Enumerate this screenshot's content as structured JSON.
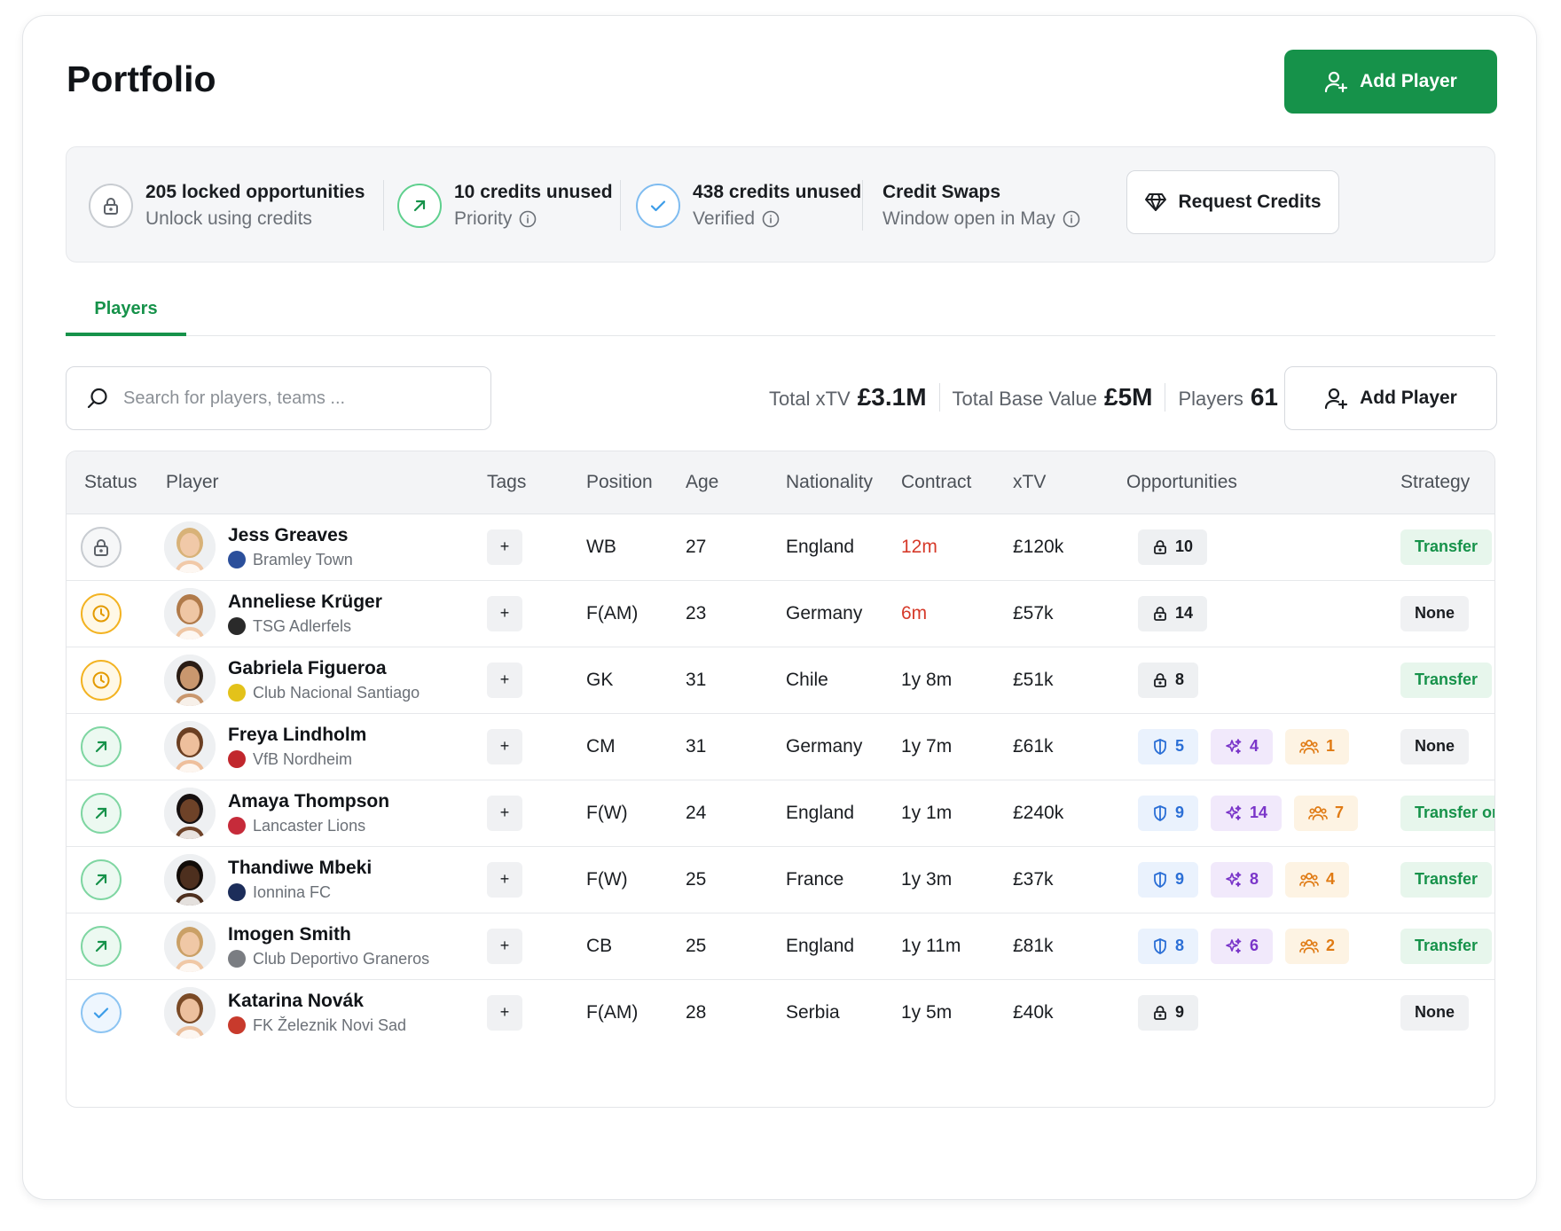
{
  "header": {
    "title": "Portfolio",
    "add_player_label": "Add Player"
  },
  "summary": {
    "locked": {
      "title": "205 locked opportunities",
      "sub": "Unlock using credits"
    },
    "priority": {
      "title": "10 credits unused",
      "sub": "Priority"
    },
    "verified": {
      "title": "438 credits unused",
      "sub": "Verified"
    },
    "swaps": {
      "title": "Credit Swaps",
      "sub": "Window open in May"
    },
    "request_label": "Request Credits"
  },
  "tabs": [
    {
      "label": "Players"
    }
  ],
  "search": {
    "placeholder": "Search for players, teams ...",
    "value": ""
  },
  "totals": {
    "xtv_label": "Total xTV",
    "xtv_value": "£3.1M",
    "base_label": "Total Base Value",
    "base_value": "£5M",
    "players_label": "Players",
    "players_value": "61"
  },
  "toolbar": {
    "add_player_label": "Add Player"
  },
  "table": {
    "columns": [
      "Status",
      "Player",
      "Tags",
      "Position",
      "Age",
      "Nationality",
      "Contract",
      "xTV",
      "Opportunities",
      "Strategy"
    ],
    "tag_label": "+",
    "rows": [
      {
        "status": "locked",
        "name": "Jess Greaves",
        "team": "Bramley Town",
        "position": "WB",
        "age": "27",
        "nationality": "England",
        "contract": "12m",
        "contract_warning": true,
        "xtv": "£120k",
        "lock": "10",
        "strategy": "Transfer",
        "strategy_type": "transfer",
        "crest_color": "#2b4f9b",
        "skin": "#f1c9a8",
        "hair": "#d8b278"
      },
      {
        "status": "pending",
        "name": "Anneliese Krüger",
        "team": "TSG Adlerfels",
        "position": "F(AM)",
        "age": "23",
        "nationality": "Germany",
        "contract": "6m",
        "contract_warning": true,
        "xtv": "£57k",
        "lock": "14",
        "strategy": "None",
        "strategy_type": "none",
        "crest_color": "#2a2a2a",
        "skin": "#efc6a4",
        "hair": "#b07a4a"
      },
      {
        "status": "pending",
        "name": "Gabriela Figueroa",
        "team": "Club Nacional Santiago",
        "position": "GK",
        "age": "31",
        "nationality": "Chile",
        "contract": "1y 8m",
        "contract_warning": false,
        "xtv": "£51k",
        "lock": "8",
        "strategy": "Transfer",
        "strategy_type": "transfer",
        "crest_color": "#e3c21a",
        "skin": "#c9976e",
        "hair": "#2a1c14"
      },
      {
        "status": "priority",
        "name": "Freya Lindholm",
        "team": "VfB Nordheim",
        "position": "CM",
        "age": "31",
        "nationality": "Germany",
        "contract": "1y 7m",
        "contract_warning": false,
        "xtv": "£61k",
        "shield": "5",
        "spark": "4",
        "people": "1",
        "strategy": "None",
        "strategy_type": "none",
        "crest_color": "#c1272d",
        "skin": "#eebf9c",
        "hair": "#6b3f22"
      },
      {
        "status": "priority",
        "name": "Amaya Thompson",
        "team": "Lancaster Lions",
        "position": "F(W)",
        "age": "24",
        "nationality": "England",
        "contract": "1y 1m",
        "contract_warning": false,
        "xtv": "£240k",
        "shield": "9",
        "spark": "14",
        "people": "7",
        "strategy": "Transfer or Loan",
        "strategy_type": "transfer",
        "crest_color": "#c62b3a",
        "skin": "#6e4228",
        "hair": "#161010"
      },
      {
        "status": "priority",
        "name": "Thandiwe Mbeki",
        "team": "Ionnina FC",
        "position": "F(W)",
        "age": "25",
        "nationality": "France",
        "contract": "1y 3m",
        "contract_warning": false,
        "xtv": "£37k",
        "shield": "9",
        "spark": "8",
        "people": "4",
        "strategy": "Transfer",
        "strategy_type": "transfer",
        "crest_color": "#1c2d5a",
        "skin": "#4d2f1e",
        "hair": "#120c08"
      },
      {
        "status": "priority",
        "name": "Imogen Smith",
        "team": "Club Deportivo Graneros",
        "position": "CB",
        "age": "25",
        "nationality": "England",
        "contract": "1y 11m",
        "contract_warning": false,
        "xtv": "£81k",
        "shield": "8",
        "spark": "6",
        "people": "2",
        "strategy": "Transfer",
        "strategy_type": "transfer",
        "crest_color": "#7a7d82",
        "skin": "#f0c8a6",
        "hair": "#caa066"
      },
      {
        "status": "verified",
        "name": "Katarina Novák",
        "team": "FK Železnik Novi Sad",
        "position": "F(AM)",
        "age": "28",
        "nationality": "Serbia",
        "contract": "1y 5m",
        "contract_warning": false,
        "xtv": "£40k",
        "lock": "9",
        "strategy": "None",
        "strategy_type": "none",
        "crest_color": "#c83a2c",
        "skin": "#ecc09e",
        "hair": "#7a4a26"
      }
    ]
  },
  "colors": {
    "brand": "#16924a",
    "locked": "#9aa0a6",
    "pending": "#f0a500",
    "priority": "#2fbf6a",
    "verified": "#3b9ce8"
  }
}
